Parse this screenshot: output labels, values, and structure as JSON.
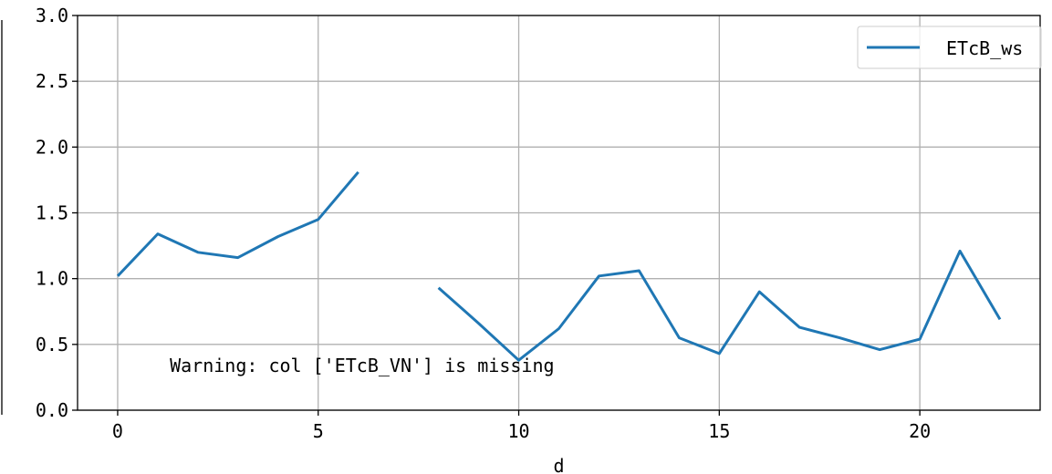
{
  "chart_data": {
    "type": "line",
    "xlabel": "d",
    "ylabel": "",
    "xlim": [
      -1,
      23
    ],
    "ylim": [
      0,
      3
    ],
    "xticks": [
      "0",
      "5",
      "10",
      "15",
      "20"
    ],
    "yticks": [
      "0.0",
      "0.5",
      "1.0",
      "1.5",
      "2.0",
      "2.5",
      "3.0"
    ],
    "grid": true,
    "legend_position": "top-right",
    "series": [
      {
        "name": "ETcB_ws",
        "color": "#1f77b4",
        "x": [
          0,
          1,
          2,
          3,
          4,
          5,
          6,
          7,
          8,
          9,
          10,
          11,
          12,
          13,
          14,
          15,
          16,
          17,
          18,
          19,
          20,
          21,
          22
        ],
        "y": [
          1.02,
          1.34,
          1.2,
          1.16,
          1.32,
          1.45,
          1.81,
          null,
          0.93,
          0.66,
          0.38,
          0.62,
          1.02,
          1.06,
          0.55,
          0.43,
          0.9,
          0.63,
          0.55,
          0.46,
          0.54,
          1.21,
          0.69
        ]
      }
    ],
    "annotations": [
      {
        "text": "Warning: col ['ETcB_VN'] is missing",
        "x": 1.3,
        "y": 0.29
      }
    ]
  }
}
